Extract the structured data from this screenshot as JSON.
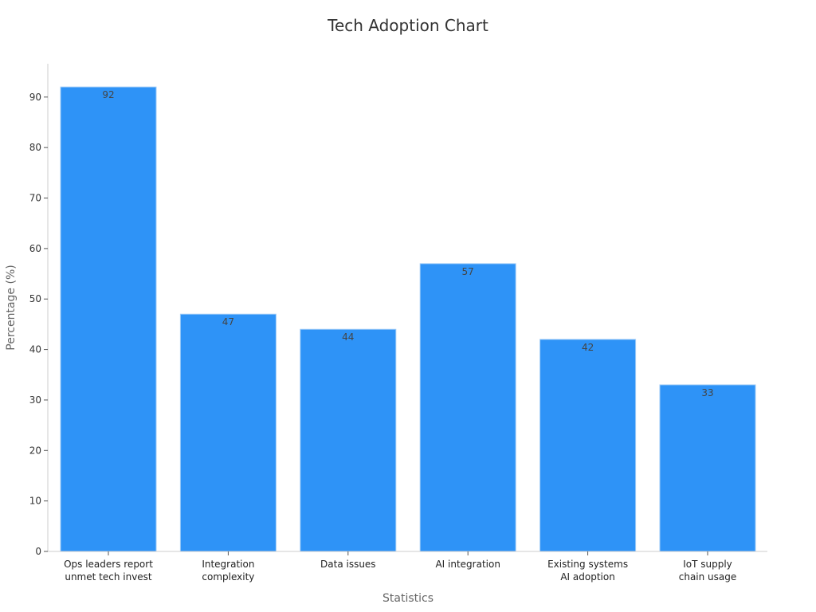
{
  "chart_data": {
    "type": "bar",
    "title": "Tech Adoption Chart",
    "xlabel": "Statistics",
    "ylabel": "Percentage (%)",
    "categories": [
      [
        "Ops leaders report",
        "unmet tech invest"
      ],
      [
        "Integration",
        "complexity"
      ],
      [
        "Data issues"
      ],
      [
        "AI integration"
      ],
      [
        "Existing systems",
        "AI adoption"
      ],
      [
        "IoT supply",
        "chain usage"
      ]
    ],
    "values": [
      92,
      47,
      44,
      57,
      42,
      33
    ],
    "yticks": [
      0,
      10,
      20,
      30,
      40,
      50,
      60,
      70,
      80,
      90
    ],
    "ylim": [
      0,
      96.6
    ],
    "grid": false,
    "bar_color": "#2e93f7",
    "legend": "none"
  }
}
